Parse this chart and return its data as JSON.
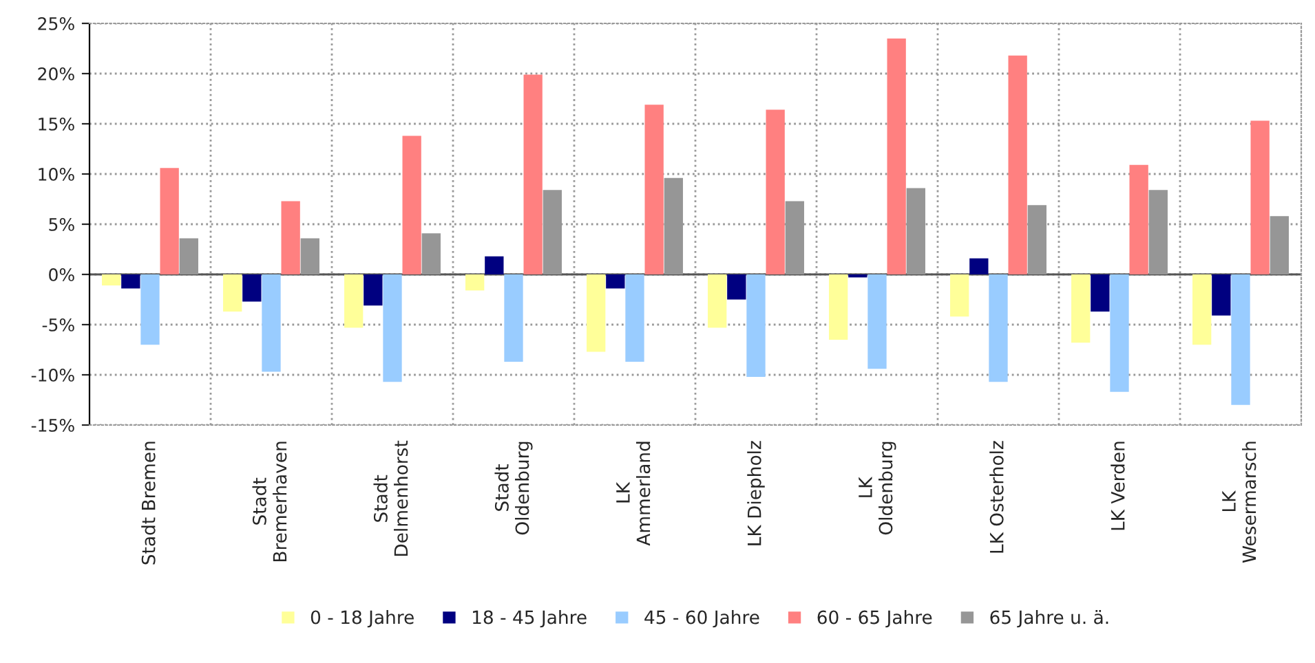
{
  "chart_data": {
    "type": "bar",
    "categories": [
      "Stadt Bremen",
      "Stadt\nBremerhaven",
      "Stadt\nDelmenhorst",
      "Stadt\nOldenburg",
      "LK\nAmmerland",
      "LK Diepholz",
      "LK\nOldenburg",
      "LK Osterholz",
      "LK Verden",
      "LK\nWesermarsch"
    ],
    "series": [
      {
        "name": "0 - 18 Jahre",
        "color": "#ffff99",
        "values": [
          -1.1,
          -3.7,
          -5.3,
          -1.6,
          -7.7,
          -5.3,
          -6.5,
          -4.2,
          -6.8,
          -7.0
        ]
      },
      {
        "name": "18 - 45 Jahre",
        "color": "#000080",
        "values": [
          -1.4,
          -2.7,
          -3.1,
          1.8,
          -1.4,
          -2.5,
          -0.3,
          1.6,
          -3.7,
          -4.1
        ]
      },
      {
        "name": "45 - 60 Jahre",
        "color": "#99ccff",
        "values": [
          -7.0,
          -9.7,
          -10.7,
          -8.7,
          -8.7,
          -10.2,
          -9.4,
          -10.7,
          -11.7,
          -13.0
        ]
      },
      {
        "name": "60 - 65 Jahre",
        "color": "#ff8080",
        "values": [
          10.6,
          7.3,
          13.8,
          19.9,
          16.9,
          16.4,
          23.5,
          21.8,
          10.9,
          15.3
        ]
      },
      {
        "name": "65 Jahre u. ä.",
        "color": "#969696",
        "values": [
          3.6,
          3.6,
          4.1,
          8.4,
          9.6,
          7.3,
          8.6,
          6.9,
          8.4,
          5.8
        ]
      }
    ],
    "ylim": [
      -15,
      25
    ],
    "yticks": [
      {
        "value": -15,
        "label": "-15%"
      },
      {
        "value": -10,
        "label": "-10%"
      },
      {
        "value": -5,
        "label": "-5%"
      },
      {
        "value": 0,
        "label": "0%"
      },
      {
        "value": 5,
        "label": "5%"
      },
      {
        "value": 10,
        "label": "10%"
      },
      {
        "value": 15,
        "label": "15%"
      },
      {
        "value": 20,
        "label": "20%"
      },
      {
        "value": 25,
        "label": "25%"
      }
    ],
    "grid": true,
    "legend": "bottom"
  }
}
